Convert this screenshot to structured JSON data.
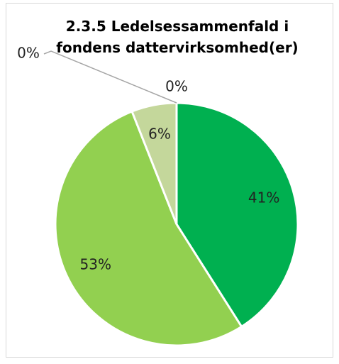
{
  "chart_data": {
    "type": "pie",
    "title": "2.3.5 Ledelsessammenfald i fondens dattervirksomhed(er)",
    "categories": [
      null,
      null,
      null,
      null,
      null
    ],
    "values": [
      41,
      53,
      6,
      0,
      0
    ],
    "value_labels": [
      "41%",
      "53%",
      "6%",
      "0%",
      "0%"
    ],
    "colors": [
      "#00b050",
      "#92d050",
      "#c4d79b",
      "#d8e4bc",
      "#ebf1de"
    ]
  }
}
